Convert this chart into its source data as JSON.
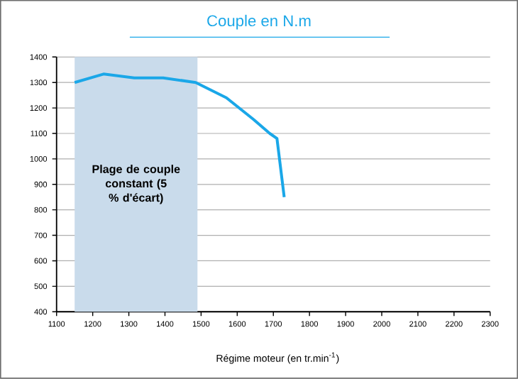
{
  "chart_data": {
    "type": "line",
    "title": "Couple en N.m",
    "xlabel": "Régime moteur (en tr.min$^{-1}$)",
    "x": [
      1150,
      1230,
      1315,
      1395,
      1485,
      1570,
      1645,
      1690,
      1710,
      1730
    ],
    "series": [
      {
        "color": "#1aa7e8",
        "values": [
          1300,
          1333,
          1318,
          1318,
          1300,
          1240,
          1155,
          1100,
          1080,
          850
        ]
      }
    ],
    "xlim": [
      1100,
      2300
    ],
    "ylim": [
      400,
      1400
    ],
    "xticks": [
      1100,
      1200,
      1300,
      1400,
      1500,
      1600,
      1700,
      1800,
      1900,
      2000,
      2100,
      2200,
      2300
    ],
    "yticks": [
      400,
      500,
      600,
      700,
      800,
      900,
      1000,
      1100,
      1200,
      1300,
      1400
    ],
    "grid": "y",
    "bands": [
      {
        "axis": "x",
        "from": 1150,
        "to": 1490,
        "label": "Plage de couple constant (5 % d'écart)",
        "color": "#c9dbeb"
      }
    ]
  }
}
